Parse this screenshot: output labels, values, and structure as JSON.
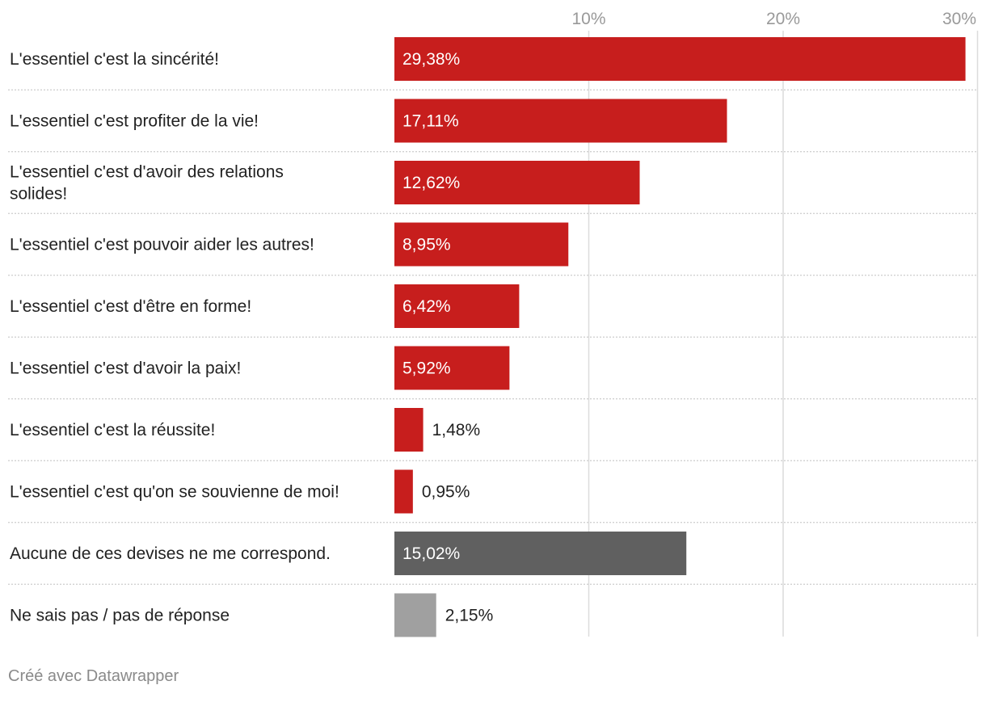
{
  "chart_data": {
    "type": "bar",
    "orientation": "horizontal",
    "unit": "%",
    "xlim": [
      0,
      30
    ],
    "ticks": [
      {
        "value": 10,
        "label": "10%"
      },
      {
        "value": 20,
        "label": "20%"
      },
      {
        "value": 30,
        "label": "30%"
      }
    ],
    "grid": true,
    "categories": [
      [
        "L'essentiel c'est la sincérité!"
      ],
      [
        "L'essentiel c'est profiter de la vie!"
      ],
      [
        "L'essentiel c'est d'avoir des relations",
        "solides!"
      ],
      [
        "L'essentiel c'est pouvoir aider les autres!"
      ],
      [
        "L'essentiel c'est d'être en forme!"
      ],
      [
        "L'essentiel c'est d'avoir la paix!"
      ],
      [
        "L'essentiel c'est la réussite!"
      ],
      [
        "L'essentiel c'est qu'on se souvienne de moi!"
      ],
      [
        "Aucune de ces devises ne me correspond."
      ],
      [
        "Ne sais pas / pas de réponse"
      ]
    ],
    "values": [
      29.38,
      17.11,
      12.62,
      8.95,
      6.42,
      5.92,
      1.48,
      0.95,
      15.02,
      2.15
    ],
    "value_labels": [
      "29,38%",
      "17,11%",
      "12,62%",
      "8,95%",
      "6,42%",
      "5,92%",
      "1,48%",
      "0,95%",
      "15,02%",
      "2,15%"
    ],
    "colors": [
      "#c71e1d",
      "#c71e1d",
      "#c71e1d",
      "#c71e1d",
      "#c71e1d",
      "#c71e1d",
      "#c71e1d",
      "#c71e1d",
      "#606060",
      "#a0a0a0"
    ]
  },
  "footer": {
    "credit": "Créé avec Datawrapper"
  }
}
